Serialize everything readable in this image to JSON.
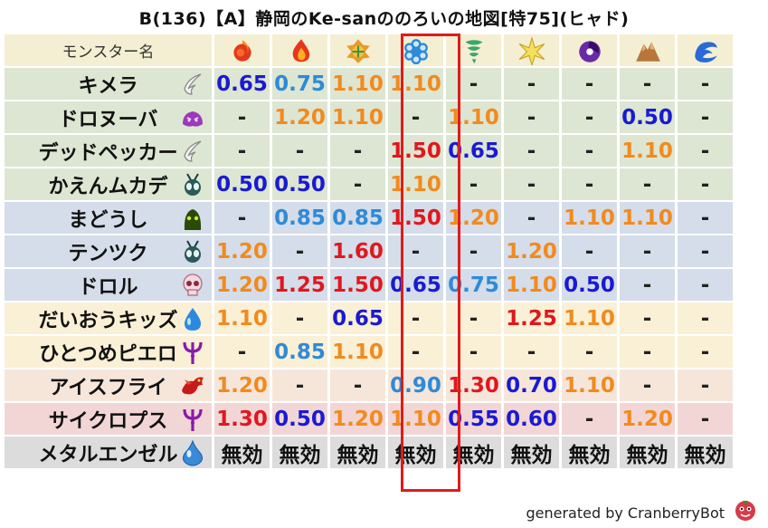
{
  "title": "B(136)【A】静岡のKe-sanののろいの地図[特75](ヒャド)",
  "header_label": "モンスター名",
  "elements": [
    {
      "name": "fire-icon"
    },
    {
      "name": "flame-icon"
    },
    {
      "name": "leaf-icon"
    },
    {
      "name": "ice-icon"
    },
    {
      "name": "wind-icon"
    },
    {
      "name": "light-icon"
    },
    {
      "name": "dark-icon"
    },
    {
      "name": "earth-icon"
    },
    {
      "name": "water-icon"
    }
  ],
  "colors": {
    "blue": "#1a1ad2",
    "light": "#2f8ad8",
    "orange": "#f28a1e",
    "red": "#e0181e",
    "highlight": "#e01b1b"
  },
  "rows": [
    {
      "name": "キメラ",
      "icon": "wing-icon",
      "bg": "#dde6d2",
      "values": [
        [
          "0.65",
          "blue"
        ],
        [
          "0.75",
          "light"
        ],
        [
          "1.10",
          "orange"
        ],
        [
          "1.10",
          "orange"
        ],
        [
          "-",
          "dash"
        ],
        [
          "-",
          "dash"
        ],
        [
          "-",
          "dash"
        ],
        [
          "-",
          "dash"
        ],
        [
          "-",
          "dash"
        ]
      ]
    },
    {
      "name": "ドロヌーバ",
      "icon": "slime-blob-icon",
      "bg": "#dde6d2",
      "values": [
        [
          "-",
          "dash"
        ],
        [
          "1.20",
          "orange"
        ],
        [
          "1.10",
          "orange"
        ],
        [
          "-",
          "dash"
        ],
        [
          "1.10",
          "orange"
        ],
        [
          "-",
          "dash"
        ],
        [
          "-",
          "dash"
        ],
        [
          "0.50",
          "blue"
        ],
        [
          "-",
          "dash"
        ]
      ]
    },
    {
      "name": "デッドペッカー",
      "icon": "wing-icon",
      "bg": "#dde6d2",
      "values": [
        [
          "-",
          "dash"
        ],
        [
          "-",
          "dash"
        ],
        [
          "-",
          "dash"
        ],
        [
          "1.50",
          "red"
        ],
        [
          "0.65",
          "blue"
        ],
        [
          "-",
          "dash"
        ],
        [
          "-",
          "dash"
        ],
        [
          "1.10",
          "orange"
        ],
        [
          "-",
          "dash"
        ]
      ]
    },
    {
      "name": "かえんムカデ",
      "icon": "insect-icon",
      "bg": "#dde6d2",
      "values": [
        [
          "0.50",
          "blue"
        ],
        [
          "0.50",
          "blue"
        ],
        [
          "-",
          "dash"
        ],
        [
          "1.10",
          "orange"
        ],
        [
          "-",
          "dash"
        ],
        [
          "-",
          "dash"
        ],
        [
          "-",
          "dash"
        ],
        [
          "-",
          "dash"
        ],
        [
          "-",
          "dash"
        ]
      ]
    },
    {
      "name": "まどうし",
      "icon": "ghost-icon",
      "bg": "#d4dde9",
      "values": [
        [
          "-",
          "dash"
        ],
        [
          "0.85",
          "light"
        ],
        [
          "0.85",
          "light"
        ],
        [
          "1.50",
          "red"
        ],
        [
          "1.20",
          "orange"
        ],
        [
          "-",
          "dash"
        ],
        [
          "1.10",
          "orange"
        ],
        [
          "1.10",
          "orange"
        ],
        [
          "-",
          "dash"
        ]
      ]
    },
    {
      "name": "テンツク",
      "icon": "insect-icon",
      "bg": "#d4dde9",
      "values": [
        [
          "1.20",
          "orange"
        ],
        [
          "-",
          "dash"
        ],
        [
          "1.60",
          "red"
        ],
        [
          "-",
          "dash"
        ],
        [
          "-",
          "dash"
        ],
        [
          "1.20",
          "orange"
        ],
        [
          "-",
          "dash"
        ],
        [
          "-",
          "dash"
        ],
        [
          "-",
          "dash"
        ]
      ]
    },
    {
      "name": "ドロル",
      "icon": "skull-icon",
      "bg": "#d4dde9",
      "values": [
        [
          "1.20",
          "orange"
        ],
        [
          "1.25",
          "red"
        ],
        [
          "1.50",
          "red"
        ],
        [
          "0.65",
          "blue"
        ],
        [
          "0.75",
          "light"
        ],
        [
          "1.10",
          "orange"
        ],
        [
          "0.50",
          "blue"
        ],
        [
          "-",
          "dash"
        ],
        [
          "-",
          "dash"
        ]
      ]
    },
    {
      "name": "だいおうキッズ",
      "icon": "water-drop-icon",
      "bg": "#faf0d6",
      "values": [
        [
          "1.10",
          "orange"
        ],
        [
          "-",
          "dash"
        ],
        [
          "0.65",
          "blue"
        ],
        [
          "-",
          "dash"
        ],
        [
          "-",
          "dash"
        ],
        [
          "1.25",
          "red"
        ],
        [
          "1.10",
          "orange"
        ],
        [
          "-",
          "dash"
        ],
        [
          "-",
          "dash"
        ]
      ]
    },
    {
      "name": "ひとつめピエロ",
      "icon": "trident-icon",
      "bg": "#faf0d6",
      "values": [
        [
          "-",
          "dash"
        ],
        [
          "0.85",
          "light"
        ],
        [
          "1.10",
          "orange"
        ],
        [
          "-",
          "dash"
        ],
        [
          "-",
          "dash"
        ],
        [
          "-",
          "dash"
        ],
        [
          "-",
          "dash"
        ],
        [
          "-",
          "dash"
        ],
        [
          "-",
          "dash"
        ]
      ]
    },
    {
      "name": "アイスフライ",
      "icon": "dragon-icon",
      "bg": "#f6e6da",
      "values": [
        [
          "1.20",
          "orange"
        ],
        [
          "-",
          "dash"
        ],
        [
          "-",
          "dash"
        ],
        [
          "0.90",
          "light"
        ],
        [
          "1.30",
          "red"
        ],
        [
          "0.70",
          "blue"
        ],
        [
          "1.10",
          "orange"
        ],
        [
          "-",
          "dash"
        ],
        [
          "-",
          "dash"
        ]
      ]
    },
    {
      "name": "サイクロプス",
      "icon": "trident-icon",
      "bg": "#f2d6d6",
      "values": [
        [
          "1.30",
          "red"
        ],
        [
          "0.50",
          "blue"
        ],
        [
          "1.20",
          "orange"
        ],
        [
          "1.10",
          "orange"
        ],
        [
          "0.55",
          "blue"
        ],
        [
          "0.60",
          "blue"
        ],
        [
          "-",
          "dash"
        ],
        [
          "1.20",
          "orange"
        ],
        [
          "-",
          "dash"
        ]
      ]
    },
    {
      "name": "メタルエンゼル",
      "icon": "metal-slime-icon",
      "bg": "#dcdcdc",
      "values": [
        [
          "無効",
          "mu"
        ],
        [
          "無効",
          "mu"
        ],
        [
          "無効",
          "mu"
        ],
        [
          "無効",
          "mu"
        ],
        [
          "無効",
          "mu"
        ],
        [
          "無効",
          "mu"
        ],
        [
          "無効",
          "mu"
        ],
        [
          "無効",
          "mu"
        ],
        [
          "無効",
          "mu"
        ]
      ]
    }
  ],
  "footer": "generated by CranberryBot"
}
